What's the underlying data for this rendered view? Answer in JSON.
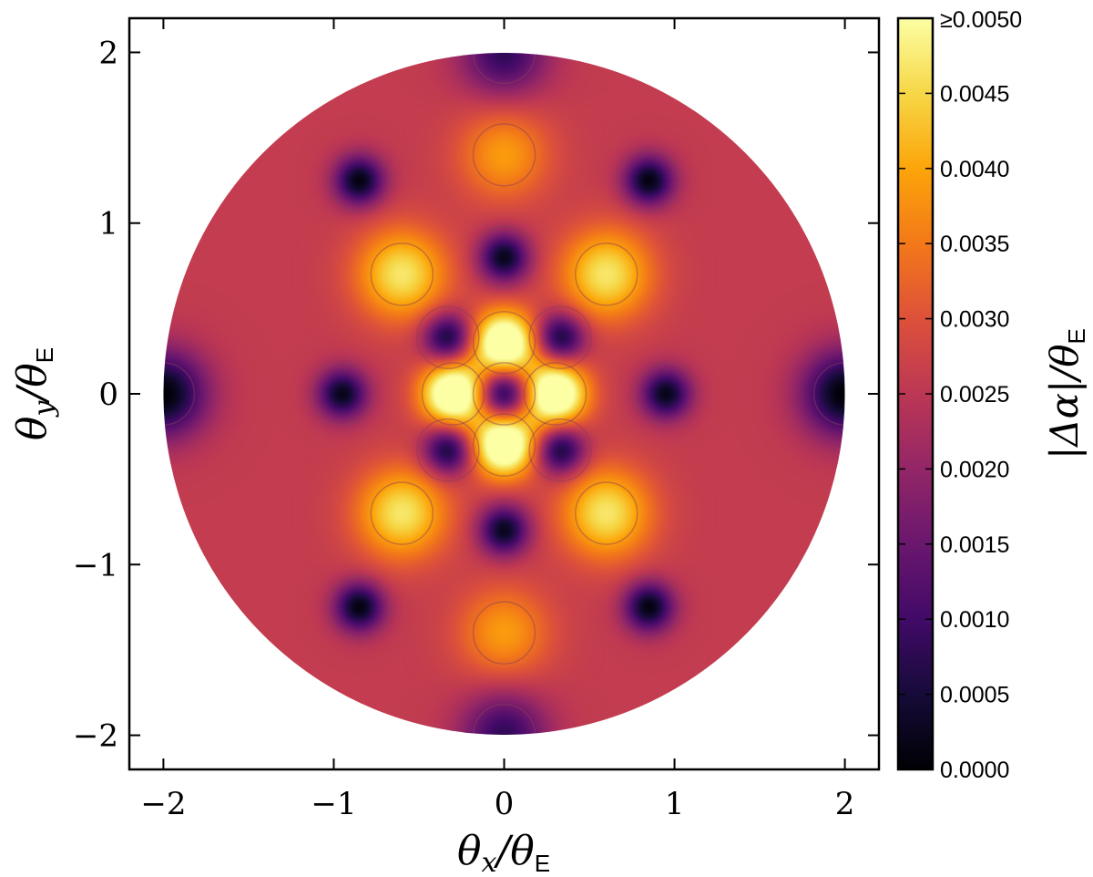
{
  "chart_data": {
    "type": "heatmap",
    "title": "",
    "xlabel": {
      "main": "θ",
      "sub": "x",
      "div": "/θ",
      "sub2": "E"
    },
    "ylabel": {
      "main": "θ",
      "sub": "y",
      "div": "/θ",
      "sub2": "E"
    },
    "xlim": [
      -2.2,
      2.2
    ],
    "ylim": [
      -2.2,
      2.2
    ],
    "xticks": [
      -2,
      -1,
      0,
      1,
      2
    ],
    "yticks": [
      -2,
      -1,
      0,
      1,
      2
    ],
    "xtick_labels": [
      "−2",
      "−1",
      "0",
      "1",
      "2"
    ],
    "ytick_labels": [
      "−2",
      "−1",
      "0",
      "1",
      "2"
    ],
    "domain_radius": 2.0,
    "colormap": "inferno",
    "colorbar": {
      "label": "|Δα|/θ",
      "label_sub": "E",
      "min": 0.0,
      "max": 0.005,
      "ticks": [
        0.0,
        0.0005,
        0.001,
        0.0015,
        0.002,
        0.0025,
        0.003,
        0.0035,
        0.004,
        0.0045,
        0.005
      ],
      "tick_labels": [
        "0.0000",
        "0.0005",
        "0.0010",
        "0.0015",
        "0.0020",
        "0.0025",
        "0.0030",
        "0.0035",
        "0.0040",
        "0.0045",
        "≥0.0050"
      ]
    },
    "features": {
      "minima": [
        {
          "x": 0,
          "y": 0,
          "value": 0.0
        },
        {
          "x": 0,
          "y": 0.8,
          "value": 0.0002
        },
        {
          "x": 0,
          "y": -0.8,
          "value": 0.0002
        },
        {
          "x": 0.95,
          "y": 0,
          "value": 0.0002
        },
        {
          "x": -0.95,
          "y": 0,
          "value": 0.0002
        },
        {
          "x": 0.33,
          "y": 0.33,
          "value": 0.0003
        },
        {
          "x": -0.33,
          "y": 0.33,
          "value": 0.0003
        },
        {
          "x": 0.33,
          "y": -0.33,
          "value": 0.0003
        },
        {
          "x": -0.33,
          "y": -0.33,
          "value": 0.0003
        },
        {
          "x": 0.85,
          "y": 1.25,
          "value": 0.0001
        },
        {
          "x": -0.85,
          "y": 1.25,
          "value": 0.0001
        },
        {
          "x": 0.85,
          "y": -1.25,
          "value": 0.0001
        },
        {
          "x": -0.85,
          "y": -1.25,
          "value": 0.0001
        },
        {
          "x": 2.0,
          "y": 0,
          "value": 0.0
        },
        {
          "x": -2.0,
          "y": 0,
          "value": 0.0
        },
        {
          "x": 0,
          "y": 2.0,
          "value": 0.0008
        },
        {
          "x": 0,
          "y": -2.0,
          "value": 0.0008
        }
      ],
      "maxima": [
        {
          "x": 0.3,
          "y": 0,
          "value": 0.006
        },
        {
          "x": -0.3,
          "y": 0,
          "value": 0.006
        },
        {
          "x": 0,
          "y": 0.3,
          "value": 0.006
        },
        {
          "x": 0,
          "y": -0.3,
          "value": 0.006
        },
        {
          "x": 0.6,
          "y": 0.7,
          "value": 0.0047
        },
        {
          "x": -0.6,
          "y": 0.7,
          "value": 0.0047
        },
        {
          "x": 0.6,
          "y": -0.7,
          "value": 0.0047
        },
        {
          "x": -0.6,
          "y": -0.7,
          "value": 0.0047
        },
        {
          "x": 0,
          "y": 1.4,
          "value": 0.0039
        },
        {
          "x": 0,
          "y": -1.4,
          "value": 0.0039
        }
      ]
    }
  }
}
